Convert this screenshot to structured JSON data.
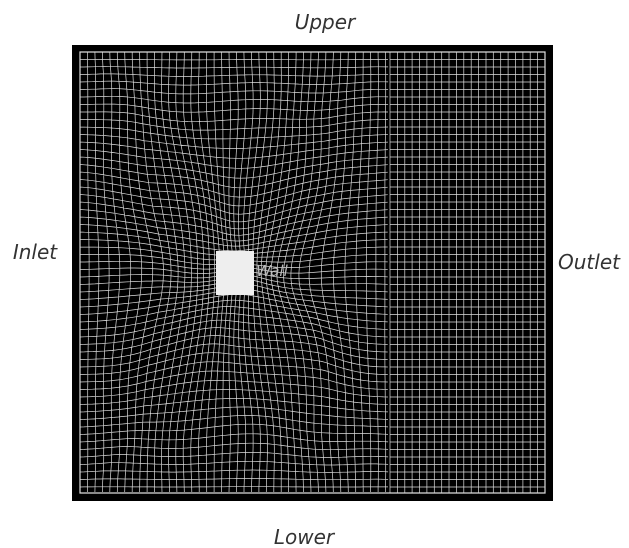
{
  "labels": {
    "upper": "Upper",
    "lower": "Lower",
    "inlet": "Inlet",
    "outlet": "Outlet",
    "wall": "Wall"
  }
}
